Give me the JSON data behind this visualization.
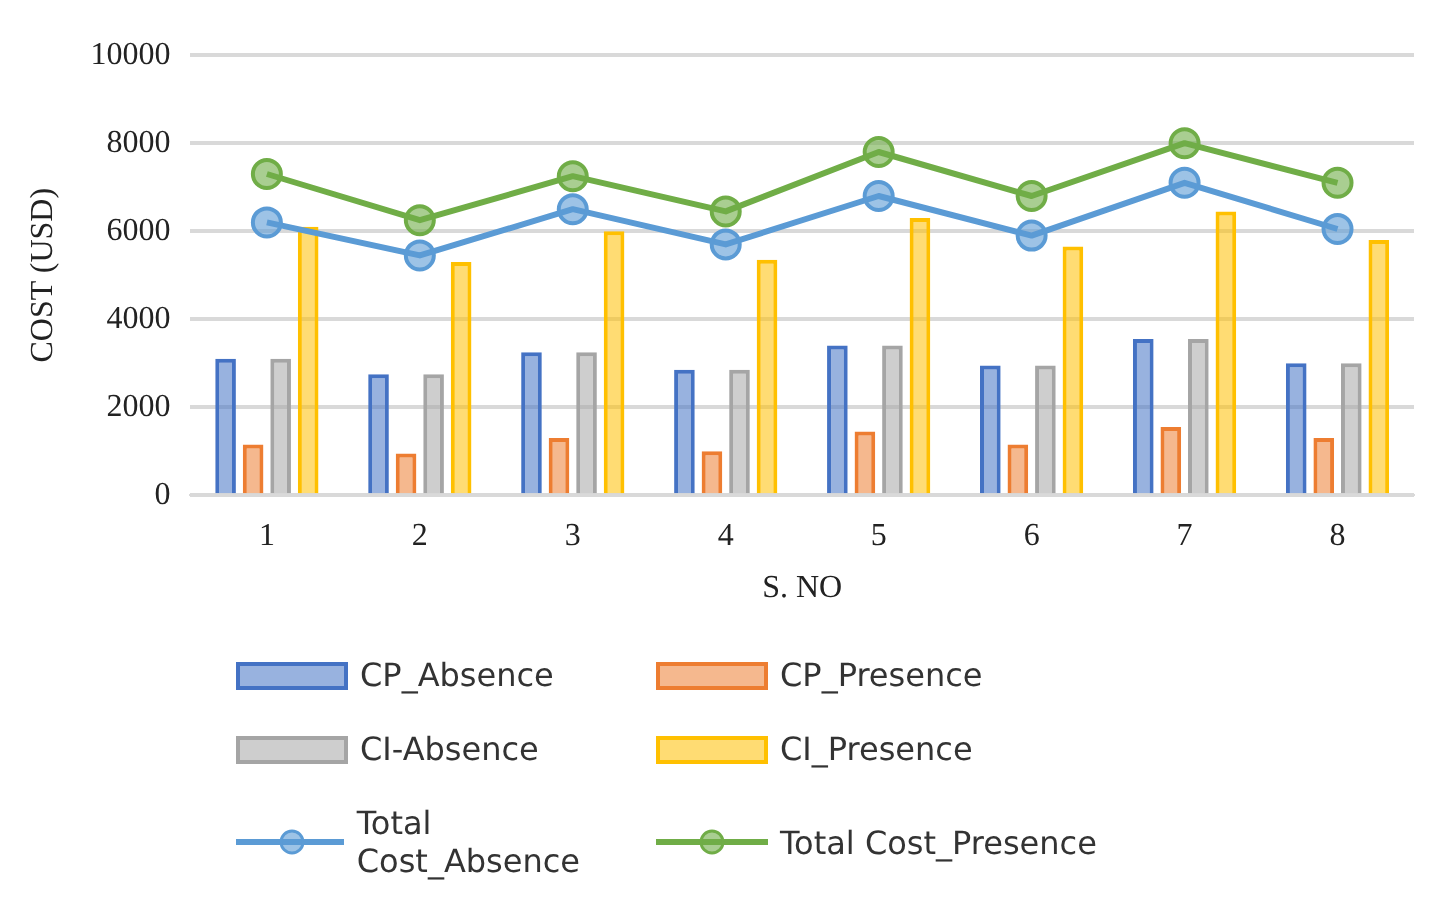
{
  "chart_data": {
    "type": "bar",
    "xlabel": "S. NO",
    "ylabel": "COST (USD)",
    "categories": [
      "1",
      "2",
      "3",
      "4",
      "5",
      "6",
      "7",
      "8"
    ],
    "series": [
      {
        "name": "CP_Absence",
        "color": "#4472c4",
        "values": [
          3100,
          2750,
          3250,
          2850,
          3400,
          2950,
          3550,
          3000
        ]
      },
      {
        "name": "CP_Presence",
        "color": "#ed7d31",
        "values": [
          1150,
          950,
          1300,
          1000,
          1450,
          1150,
          1550,
          1300
        ]
      },
      {
        "name": "CI-Absence",
        "color": "#a5a5a5",
        "values": [
          3100,
          2750,
          3250,
          2850,
          3400,
          2950,
          3550,
          3000
        ]
      },
      {
        "name": "CI_Presence",
        "color": "#ffc000",
        "values": [
          6100,
          5300,
          6000,
          5350,
          6300,
          5650,
          6450,
          5800
        ]
      },
      {
        "name": "Total Cost_Absence",
        "type": "line",
        "color": "#5b9bd5",
        "values": [
          6200,
          5450,
          6500,
          5700,
          6800,
          5900,
          7100,
          6050
        ]
      },
      {
        "name": "Total Cost_Presence",
        "type": "line",
        "color": "#70ad47",
        "values": [
          7300,
          6250,
          7250,
          6450,
          7800,
          6800,
          8000,
          7100
        ]
      }
    ],
    "ylim": [
      0,
      10000
    ],
    "yticks": [
      0,
      2000,
      4000,
      6000,
      8000,
      10000
    ],
    "grid": "y",
    "legend": "bottom",
    "marker": "circle"
  }
}
